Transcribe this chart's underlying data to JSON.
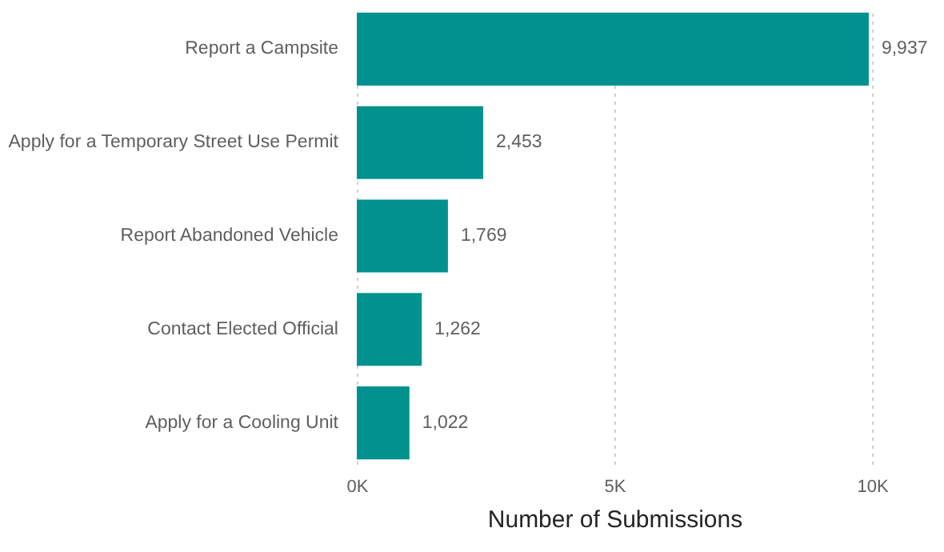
{
  "chart_data": {
    "type": "bar",
    "orientation": "horizontal",
    "xlabel": "Number of Submissions",
    "categories": [
      "Report a Campsite",
      "Apply for a Temporary Street Use Permit",
      "Report Abandoned Vehicle",
      "Contact Elected Official",
      "Apply for a Cooling Unit"
    ],
    "values": [
      9937,
      2453,
      1769,
      1262,
      1022
    ],
    "color": "#01928f",
    "value_labels": [
      "9,937",
      "2,453",
      "1,769",
      "1,262",
      "1,022"
    ],
    "xlim": [
      0,
      10000
    ],
    "xticks": [
      {
        "value": 0,
        "label": "0K"
      },
      {
        "value": 5000,
        "label": "5K"
      },
      {
        "value": 10000,
        "label": "10K"
      }
    ],
    "grid": "x"
  }
}
